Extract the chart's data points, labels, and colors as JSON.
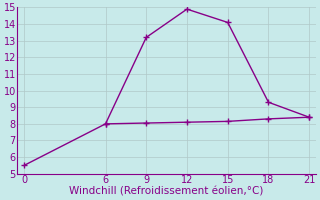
{
  "line1_x": [
    0,
    6,
    9,
    12,
    15,
    18,
    21
  ],
  "line1_y": [
    5.5,
    8.0,
    13.2,
    14.9,
    14.1,
    9.3,
    8.4
  ],
  "line2_x": [
    6,
    9,
    12,
    15,
    18,
    21
  ],
  "line2_y": [
    8.0,
    8.05,
    8.1,
    8.15,
    8.3,
    8.4
  ],
  "line_color": "#880088",
  "bg_color": "#c8eaea",
  "xlabel": "Windchill (Refroidissement éolien,°C)",
  "xlim": [
    -0.5,
    21.5
  ],
  "ylim": [
    5,
    15
  ],
  "xticks": [
    0,
    6,
    9,
    12,
    15,
    18,
    21
  ],
  "yticks": [
    5,
    6,
    7,
    8,
    9,
    10,
    11,
    12,
    13,
    14,
    15
  ],
  "grid_color": "#b0c8c8",
  "marker": "+",
  "markersize": 5,
  "linewidth": 1.0,
  "tick_fontsize": 7,
  "xlabel_fontsize": 7.5
}
